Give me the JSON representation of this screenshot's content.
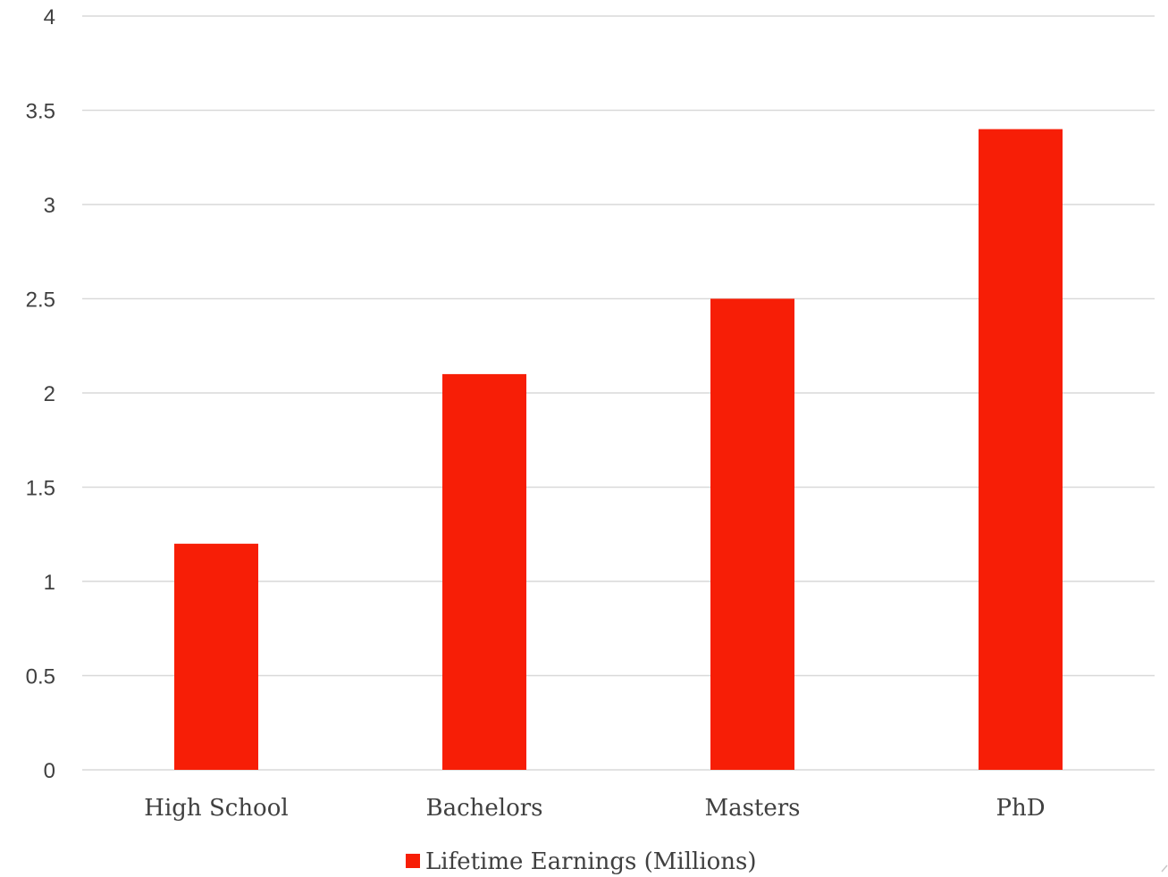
{
  "chart_data": {
    "type": "bar",
    "categories": [
      "High School",
      "Bachelors",
      "Masters",
      "PhD"
    ],
    "series": [
      {
        "name": "Lifetime Earnings (Millions)",
        "values": [
          1.2,
          2.1,
          2.5,
          3.4
        ],
        "color": "#f71e06"
      }
    ],
    "title": "",
    "xlabel": "",
    "ylabel": "",
    "ylim": [
      0,
      4
    ],
    "yticks": [
      "0",
      "0.5",
      "1",
      "1.5",
      "2",
      "2.5",
      "3",
      "3.5",
      "4"
    ],
    "grid": true,
    "legend": "bottom"
  }
}
